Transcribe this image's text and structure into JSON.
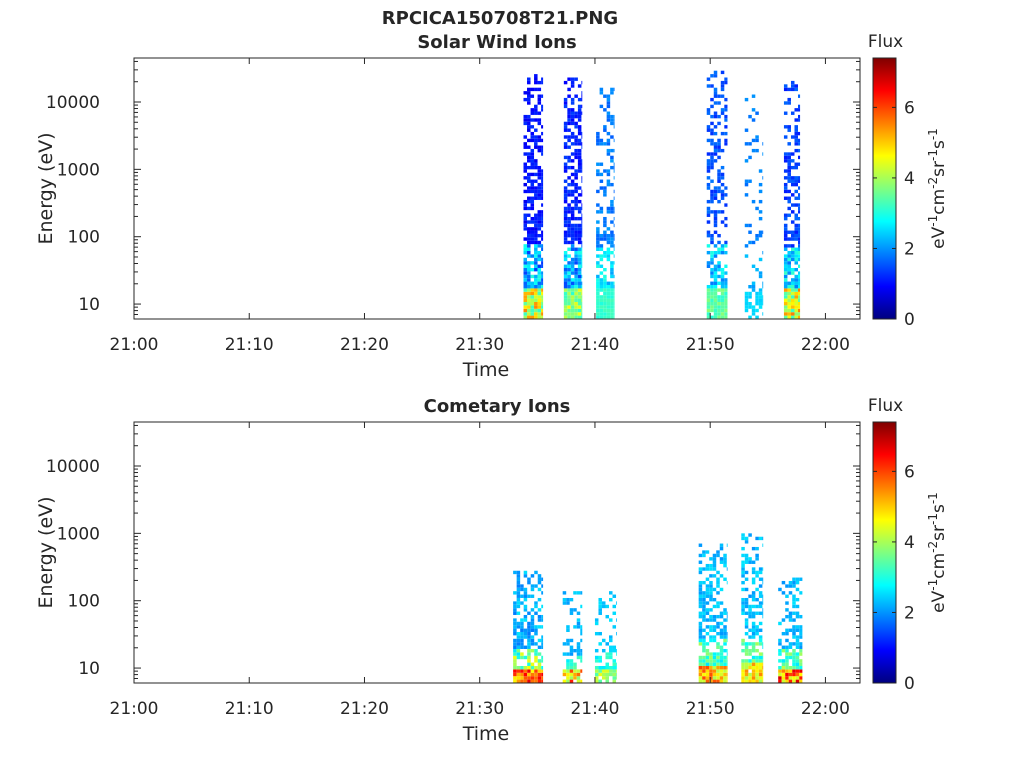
{
  "figure_title": "RPCICA150708T21.PNG",
  "chart_data": [
    {
      "type": "heatmap",
      "title": "Solar Wind Ions",
      "xlabel": "Time",
      "ylabel": "Energy (eV)",
      "y_scale": "log",
      "x_range": [
        "21:00",
        "22:03"
      ],
      "y_range": [
        6,
        45000
      ],
      "x_ticks": [
        {
          "t": 0,
          "label": "21:00"
        },
        {
          "t": 10,
          "label": "21:10"
        },
        {
          "t": 20,
          "label": "21:20"
        },
        {
          "t": 30,
          "label": "21:30"
        },
        {
          "t": 40,
          "label": "21:40"
        },
        {
          "t": 50,
          "label": "21:50"
        },
        {
          "t": 60,
          "label": "22:00"
        }
      ],
      "y_ticks": [
        {
          "v": 10,
          "label": "10"
        },
        {
          "v": 100,
          "label": "100"
        },
        {
          "v": 1000,
          "label": "1000"
        },
        {
          "v": 10000,
          "label": "10000"
        }
      ],
      "colorbar": {
        "title": "Flux",
        "label": "eV-1cm-2sr-1s-1",
        "range": [
          0,
          7.4
        ],
        "ticks": [
          {
            "v": 0,
            "label": "0"
          },
          {
            "v": 2,
            "label": "2"
          },
          {
            "v": 4,
            "label": "4"
          },
          {
            "v": 6,
            "label": "6"
          }
        ]
      },
      "bursts": [
        {
          "t0": 33.8,
          "t1": 35.5,
          "e_top": 24000,
          "top_flux": 0.8,
          "mid_flux": 1.3,
          "low_flux": 3.1,
          "peak_flux": 5.5,
          "density": 0.85
        },
        {
          "t0": 37.3,
          "t1": 38.9,
          "e_top": 22000,
          "top_flux": 0.9,
          "mid_flux": 1.4,
          "low_flux": 3.0,
          "peak_flux": 4.6,
          "density": 0.85
        },
        {
          "t0": 40.1,
          "t1": 41.7,
          "e_top": 16000,
          "top_flux": 1.6,
          "mid_flux": 2.1,
          "low_flux": 3.0,
          "peak_flux": 3.3,
          "density": 0.6
        },
        {
          "t0": 49.7,
          "t1": 51.5,
          "e_top": 28000,
          "top_flux": 1.2,
          "mid_flux": 1.8,
          "low_flux": 3.0,
          "peak_flux": 3.8,
          "density": 0.55
        },
        {
          "t0": 53.0,
          "t1": 54.6,
          "e_top": 12000,
          "top_flux": 1.7,
          "mid_flux": 2.0,
          "low_flux": 2.4,
          "peak_flux": 2.6,
          "density": 0.2
        },
        {
          "t0": 56.4,
          "t1": 57.8,
          "e_top": 19000,
          "top_flux": 1.1,
          "mid_flux": 1.7,
          "low_flux": 3.2,
          "peak_flux": 5.6,
          "density": 0.7
        }
      ]
    },
    {
      "type": "heatmap",
      "title": "Cometary Ions",
      "xlabel": "Time",
      "ylabel": "Energy (eV)",
      "y_scale": "log",
      "x_range": [
        "21:00",
        "22:03"
      ],
      "y_range": [
        6,
        45000
      ],
      "x_ticks": [
        {
          "t": 0,
          "label": "21:00"
        },
        {
          "t": 10,
          "label": "21:10"
        },
        {
          "t": 20,
          "label": "21:20"
        },
        {
          "t": 30,
          "label": "21:30"
        },
        {
          "t": 40,
          "label": "21:40"
        },
        {
          "t": 50,
          "label": "21:50"
        },
        {
          "t": 60,
          "label": "22:00"
        }
      ],
      "y_ticks": [
        {
          "v": 10,
          "label": "10"
        },
        {
          "v": 100,
          "label": "100"
        },
        {
          "v": 1000,
          "label": "1000"
        },
        {
          "v": 10000,
          "label": "10000"
        }
      ],
      "colorbar": {
        "title": "Flux",
        "label": "eV-1cm-2sr-1s-1",
        "range": [
          0,
          7.4
        ],
        "ticks": [
          {
            "v": 0,
            "label": "0"
          },
          {
            "v": 2,
            "label": "2"
          },
          {
            "v": 4,
            "label": "4"
          },
          {
            "v": 6,
            "label": "6"
          }
        ]
      },
      "bursts": [
        {
          "t0": 32.9,
          "t1": 35.5,
          "e_top": 260,
          "top_flux": 1.8,
          "mid_flux": 2.6,
          "low_flux": 4.6,
          "peak_flux": 6.8,
          "density": 0.8
        },
        {
          "t0": 37.2,
          "t1": 38.9,
          "e_top": 130,
          "top_flux": 2.0,
          "mid_flux": 2.6,
          "low_flux": 3.5,
          "peak_flux": 6.3,
          "density": 0.5
        },
        {
          "t0": 40.0,
          "t1": 41.9,
          "e_top": 160,
          "top_flux": 2.2,
          "mid_flux": 2.6,
          "low_flux": 3.3,
          "peak_flux": 4.5,
          "density": 0.45
        },
        {
          "t0": 49.0,
          "t1": 51.5,
          "e_top": 700,
          "top_flux": 2.0,
          "mid_flux": 2.6,
          "low_flux": 4.0,
          "peak_flux": 6.0,
          "density": 0.7
        },
        {
          "t0": 52.7,
          "t1": 54.6,
          "e_top": 900,
          "top_flux": 2.0,
          "mid_flux": 2.6,
          "low_flux": 4.0,
          "peak_flux": 5.6,
          "density": 0.6
        },
        {
          "t0": 55.9,
          "t1": 58.0,
          "e_top": 220,
          "top_flux": 2.0,
          "mid_flux": 2.6,
          "low_flux": 4.2,
          "peak_flux": 7.0,
          "density": 0.7
        }
      ]
    }
  ]
}
